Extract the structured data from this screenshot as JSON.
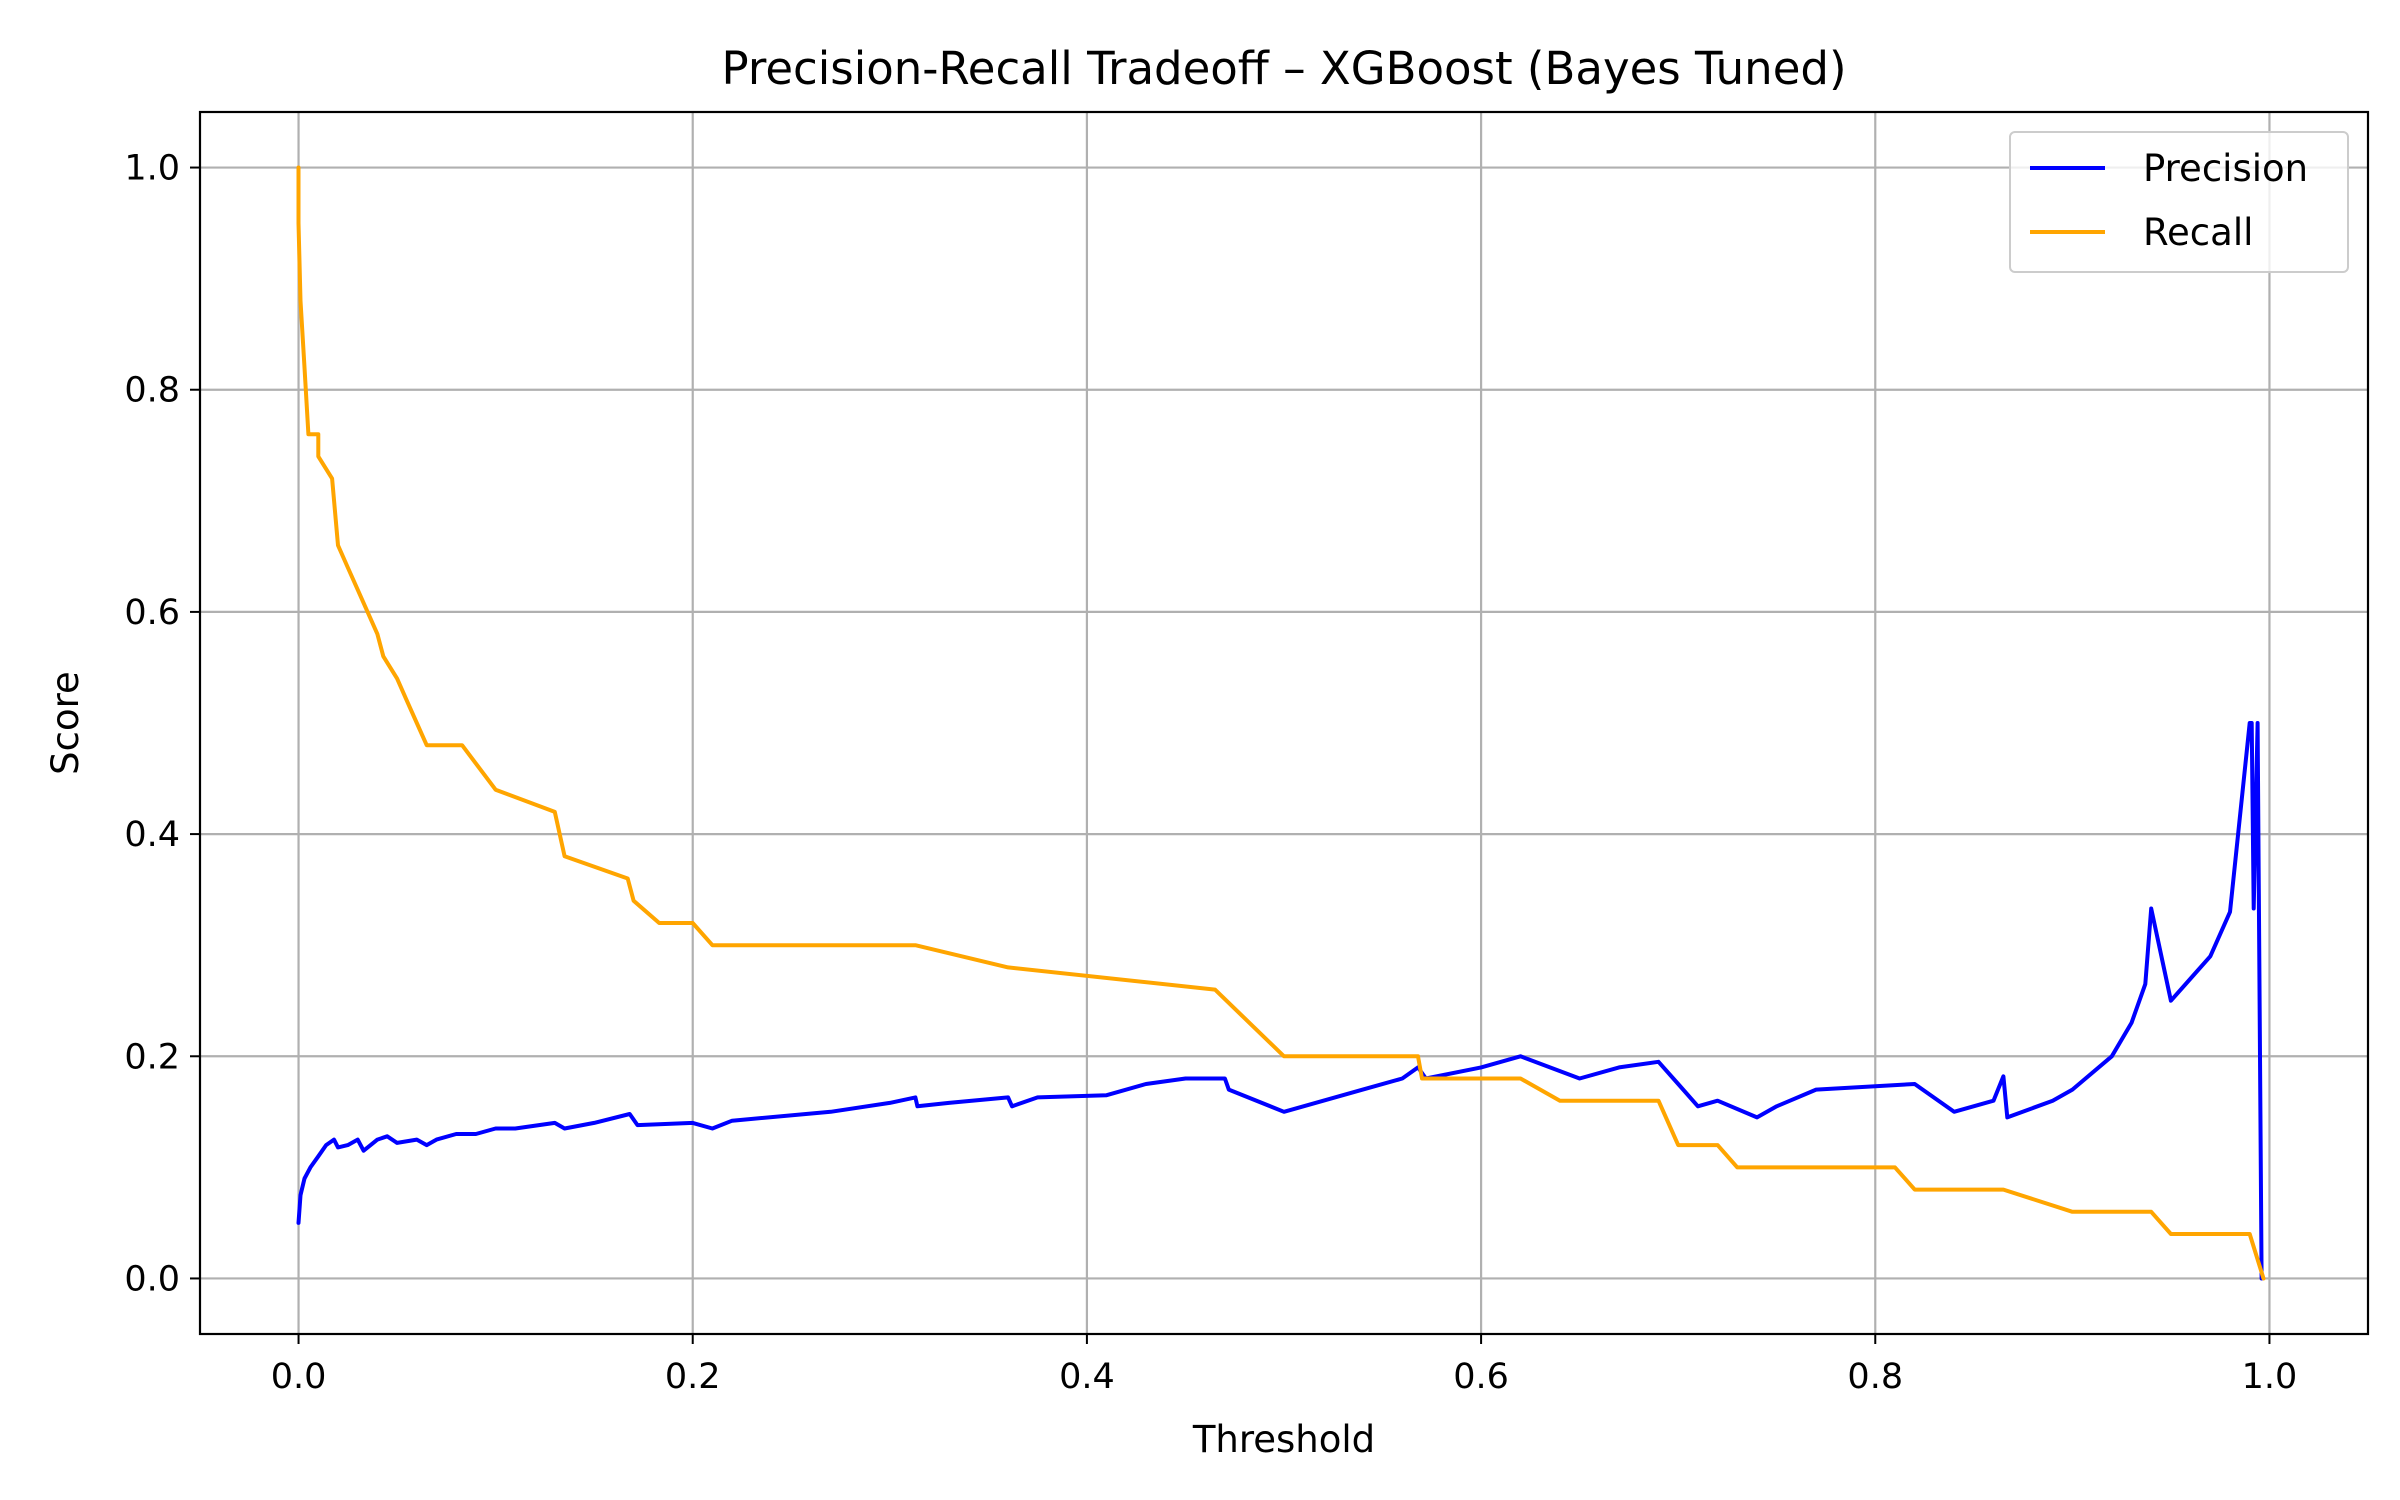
{
  "chart_data": {
    "type": "line",
    "title": "Precision-Recall Tradeoff – XGBoost (Bayes Tuned)",
    "xlabel": "Threshold",
    "ylabel": "Score",
    "xlim": [
      -0.05,
      1.05
    ],
    "ylim": [
      -0.05,
      1.05
    ],
    "xticks": [
      0.0,
      0.2,
      0.4,
      0.6,
      0.8,
      1.0
    ],
    "xtick_labels": [
      "0.0",
      "0.2",
      "0.4",
      "0.6",
      "0.8",
      "1.0"
    ],
    "yticks": [
      0.0,
      0.2,
      0.4,
      0.6,
      0.8,
      1.0
    ],
    "ytick_labels": [
      "0.0",
      "0.2",
      "0.4",
      "0.6",
      "0.8",
      "1.0"
    ],
    "grid": true,
    "legend_position": "top-right",
    "series": [
      {
        "name": "Precision",
        "color": "#0000ff",
        "x": [
          0.0,
          0.001,
          0.003,
          0.006,
          0.01,
          0.014,
          0.018,
          0.02,
          0.025,
          0.03,
          0.033,
          0.04,
          0.045,
          0.05,
          0.06,
          0.065,
          0.07,
          0.08,
          0.09,
          0.1,
          0.11,
          0.13,
          0.135,
          0.15,
          0.168,
          0.172,
          0.2,
          0.21,
          0.22,
          0.27,
          0.3,
          0.313,
          0.314,
          0.33,
          0.36,
          0.362,
          0.375,
          0.41,
          0.43,
          0.45,
          0.47,
          0.472,
          0.5,
          0.52,
          0.54,
          0.56,
          0.568,
          0.572,
          0.6,
          0.62,
          0.65,
          0.67,
          0.69,
          0.7,
          0.71,
          0.72,
          0.74,
          0.75,
          0.77,
          0.82,
          0.84,
          0.86,
          0.865,
          0.867,
          0.89,
          0.9,
          0.92,
          0.93,
          0.937,
          0.94,
          0.95,
          0.96,
          0.97,
          0.98,
          0.99,
          0.991,
          0.992,
          0.994,
          0.996
        ],
        "y": [
          0.05,
          0.075,
          0.09,
          0.1,
          0.11,
          0.12,
          0.125,
          0.118,
          0.12,
          0.125,
          0.115,
          0.125,
          0.128,
          0.122,
          0.125,
          0.12,
          0.125,
          0.13,
          0.13,
          0.135,
          0.135,
          0.14,
          0.135,
          0.14,
          0.148,
          0.138,
          0.14,
          0.135,
          0.142,
          0.15,
          0.158,
          0.163,
          0.155,
          0.158,
          0.163,
          0.155,
          0.163,
          0.165,
          0.175,
          0.18,
          0.18,
          0.17,
          0.15,
          0.16,
          0.17,
          0.18,
          0.19,
          0.18,
          0.19,
          0.2,
          0.18,
          0.19,
          0.195,
          0.175,
          0.155,
          0.16,
          0.145,
          0.155,
          0.17,
          0.175,
          0.15,
          0.16,
          0.182,
          0.145,
          0.16,
          0.17,
          0.2,
          0.23,
          0.265,
          0.333,
          0.25,
          0.27,
          0.29,
          0.33,
          0.5,
          0.5,
          0.333,
          0.5,
          0.0
        ]
      },
      {
        "name": "Recall",
        "color": "#ffa500",
        "x": [
          0.0,
          0.0,
          0.001,
          0.003,
          0.005,
          0.01,
          0.01,
          0.017,
          0.02,
          0.025,
          0.03,
          0.04,
          0.043,
          0.05,
          0.055,
          0.06,
          0.065,
          0.083,
          0.1,
          0.13,
          0.135,
          0.167,
          0.17,
          0.183,
          0.2,
          0.21,
          0.313,
          0.36,
          0.465,
          0.5,
          0.568,
          0.57,
          0.62,
          0.64,
          0.69,
          0.7,
          0.72,
          0.73,
          0.81,
          0.82,
          0.865,
          0.9,
          0.94,
          0.95,
          0.99,
          0.997
        ],
        "y": [
          1.0,
          0.95,
          0.88,
          0.82,
          0.76,
          0.76,
          0.74,
          0.72,
          0.66,
          0.64,
          0.62,
          0.58,
          0.56,
          0.54,
          0.52,
          0.5,
          0.48,
          0.48,
          0.44,
          0.42,
          0.38,
          0.36,
          0.34,
          0.32,
          0.32,
          0.3,
          0.3,
          0.28,
          0.26,
          0.2,
          0.2,
          0.18,
          0.18,
          0.16,
          0.16,
          0.12,
          0.12,
          0.1,
          0.1,
          0.08,
          0.08,
          0.06,
          0.06,
          0.04,
          0.04,
          0.0
        ]
      }
    ]
  }
}
